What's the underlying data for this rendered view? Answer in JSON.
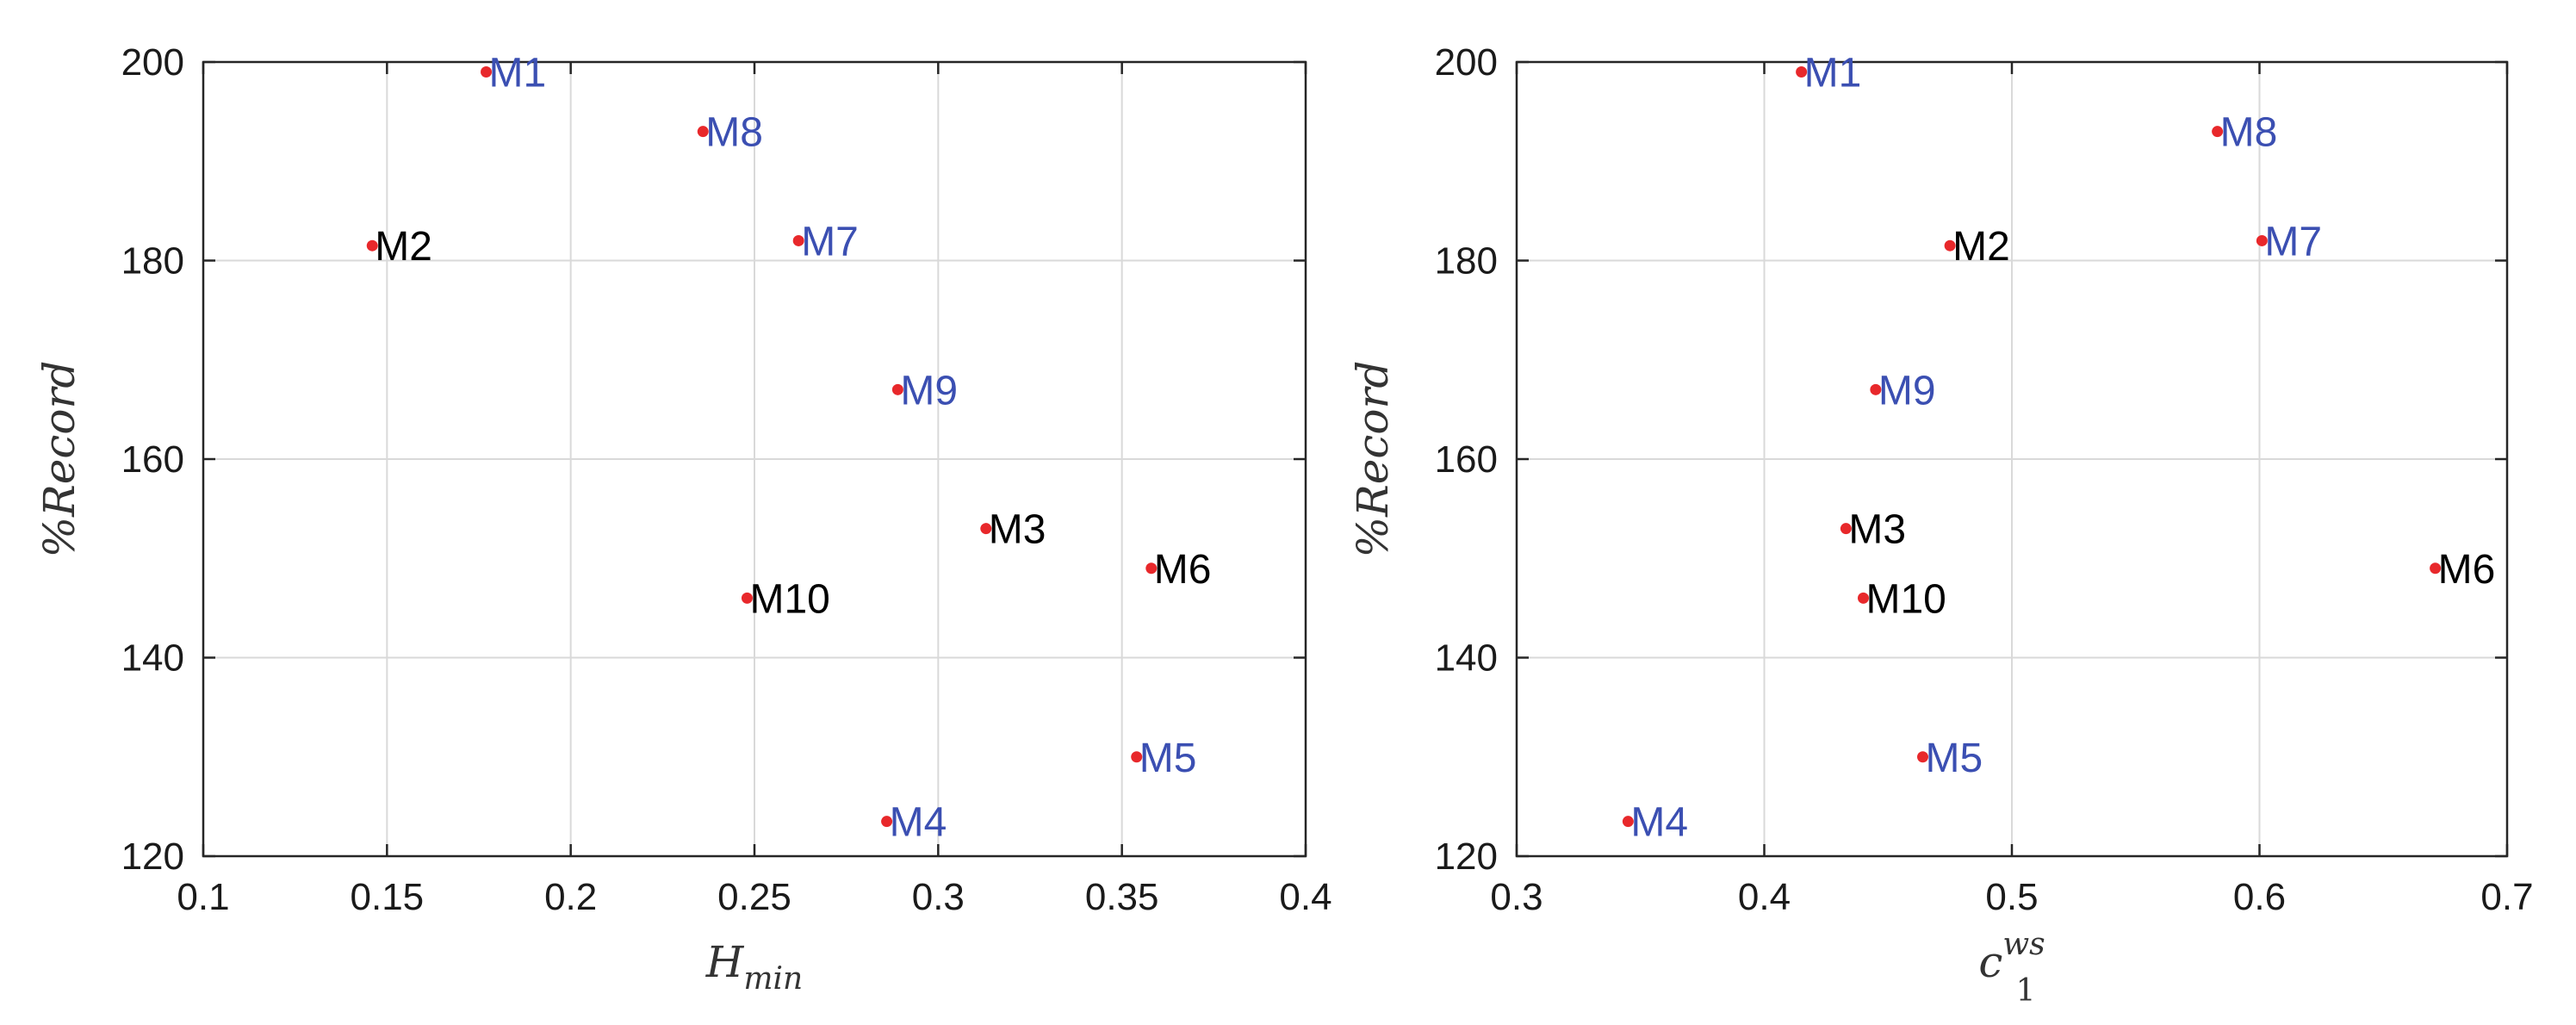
{
  "colors": {
    "marker": "#e8282b",
    "label_blue": "#3b4fb2",
    "label_black": "#000000",
    "grid": "#d9d9d9",
    "axes": "#262626"
  },
  "chart_data": [
    {
      "type": "scatter",
      "xlabel": "H",
      "xlabel_subscript": "min",
      "ylabel": "%Record",
      "xlim": [
        0.1,
        0.4
      ],
      "ylim": [
        120,
        200
      ],
      "xticks": [
        0.1,
        0.15,
        0.2,
        0.25,
        0.3,
        0.35,
        0.4
      ],
      "xtick_labels": [
        "0.1",
        "0.15",
        "0.2",
        "0.25",
        "0.3",
        "0.35",
        "0.4"
      ],
      "yticks": [
        120,
        140,
        160,
        180,
        200
      ],
      "ytick_labels": [
        "120",
        "140",
        "160",
        "180",
        "200"
      ],
      "grid": true,
      "points": [
        {
          "label": "M1",
          "x": 0.177,
          "y": 199,
          "color": "blue"
        },
        {
          "label": "M2",
          "x": 0.146,
          "y": 181.5,
          "color": "black"
        },
        {
          "label": "M3",
          "x": 0.313,
          "y": 153,
          "color": "black"
        },
        {
          "label": "M4",
          "x": 0.286,
          "y": 123.5,
          "color": "blue"
        },
        {
          "label": "M5",
          "x": 0.354,
          "y": 130,
          "color": "blue"
        },
        {
          "label": "M6",
          "x": 0.358,
          "y": 149,
          "color": "black"
        },
        {
          "label": "M7",
          "x": 0.262,
          "y": 182,
          "color": "blue"
        },
        {
          "label": "M8",
          "x": 0.236,
          "y": 193,
          "color": "blue"
        },
        {
          "label": "M9",
          "x": 0.289,
          "y": 167,
          "color": "blue"
        },
        {
          "label": "M10",
          "x": 0.248,
          "y": 146,
          "color": "black"
        }
      ]
    },
    {
      "type": "scatter",
      "xlabel": "c",
      "xlabel_subscript": "1",
      "xlabel_superscript": "ws",
      "ylabel": "%Record",
      "xlim": [
        0.3,
        0.7
      ],
      "ylim": [
        120,
        200
      ],
      "xticks": [
        0.3,
        0.4,
        0.5,
        0.6,
        0.7
      ],
      "xtick_labels": [
        "0.3",
        "0.4",
        "0.5",
        "0.6",
        "0.7"
      ],
      "yticks": [
        120,
        140,
        160,
        180,
        200
      ],
      "ytick_labels": [
        "120",
        "140",
        "160",
        "180",
        "200"
      ],
      "grid": true,
      "points": [
        {
          "label": "M1",
          "x": 0.415,
          "y": 199,
          "color": "blue"
        },
        {
          "label": "M2",
          "x": 0.475,
          "y": 181.5,
          "color": "black"
        },
        {
          "label": "M3",
          "x": 0.433,
          "y": 153,
          "color": "black"
        },
        {
          "label": "M4",
          "x": 0.345,
          "y": 123.5,
          "color": "blue"
        },
        {
          "label": "M5",
          "x": 0.464,
          "y": 130,
          "color": "blue"
        },
        {
          "label": "M6",
          "x": 0.671,
          "y": 149,
          "color": "black"
        },
        {
          "label": "M7",
          "x": 0.601,
          "y": 182,
          "color": "blue"
        },
        {
          "label": "M8",
          "x": 0.583,
          "y": 193,
          "color": "blue"
        },
        {
          "label": "M9",
          "x": 0.445,
          "y": 167,
          "color": "blue"
        },
        {
          "label": "M10",
          "x": 0.44,
          "y": 146,
          "color": "black"
        }
      ]
    }
  ]
}
